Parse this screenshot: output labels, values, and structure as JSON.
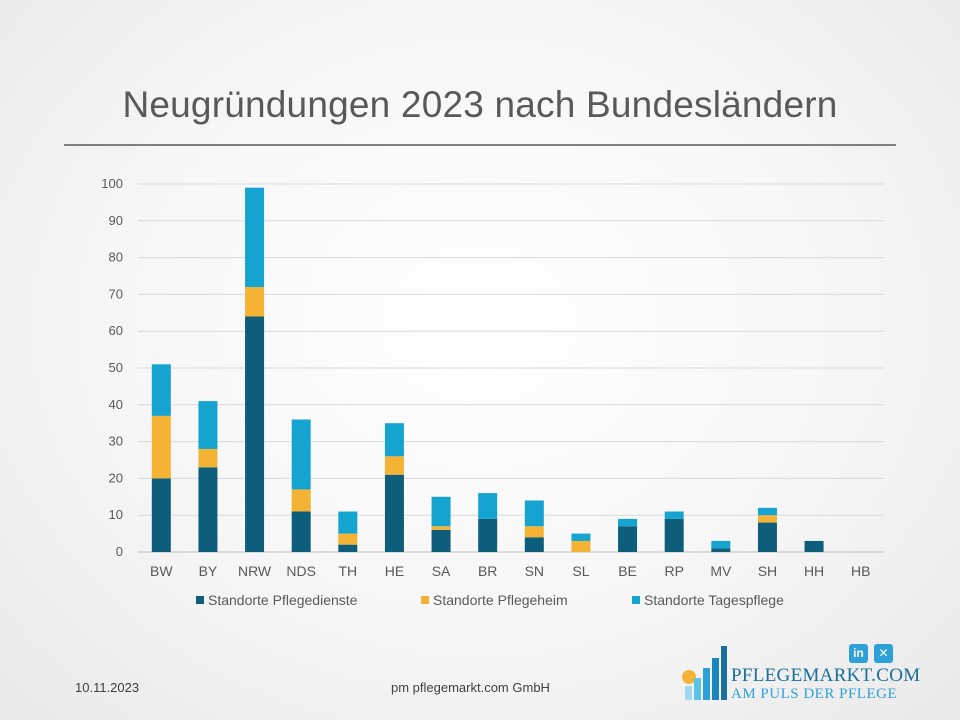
{
  "page": {
    "title": "Neugründungen 2023 nach Bundesländern",
    "footer_date": "10.11.2023",
    "footer_company": "pm pflegemarkt.com GmbH"
  },
  "brand": {
    "name": "PFLEGEMARKT.COM",
    "slogan": "AM PULS DER PFLEGE",
    "social": [
      {
        "icon": "linkedin-icon",
        "label": "in"
      },
      {
        "icon": "xing-icon",
        "label": "✕"
      }
    ],
    "colors": {
      "dark_blue": "#1a6e9b",
      "light_blue": "#2da0d8",
      "sun": "#f5b335"
    }
  },
  "chart_data": {
    "type": "bar",
    "stacked": true,
    "title": "Neugründungen 2023 nach Bundesländern",
    "xlabel": "",
    "ylabel": "",
    "ylim": [
      0,
      100
    ],
    "yticks": [
      0,
      10,
      20,
      30,
      40,
      50,
      60,
      70,
      80,
      90,
      100
    ],
    "grid": true,
    "legend_position": "bottom",
    "categories": [
      "BW",
      "BY",
      "NRW",
      "NDS",
      "TH",
      "HE",
      "SA",
      "BR",
      "SN",
      "SL",
      "BE",
      "RP",
      "MV",
      "SH",
      "HH",
      "HB"
    ],
    "series": [
      {
        "name": "Standorte Pflegedienste",
        "color": "#0e5d7a",
        "values": [
          20,
          23,
          64,
          11,
          2,
          21,
          6,
          9,
          4,
          0,
          7,
          9,
          1,
          8,
          3,
          0
        ]
      },
      {
        "name": "Standorte Pflegeheim",
        "color": "#f5b335",
        "values": [
          17,
          5,
          8,
          6,
          3,
          5,
          1,
          0,
          3,
          3,
          0,
          0,
          0,
          2,
          0,
          0
        ]
      },
      {
        "name": "Standorte Tagespflege",
        "color": "#15a4d0",
        "values": [
          14,
          13,
          27,
          19,
          6,
          9,
          8,
          7,
          7,
          2,
          2,
          2,
          2,
          2,
          0,
          0
        ]
      }
    ]
  }
}
